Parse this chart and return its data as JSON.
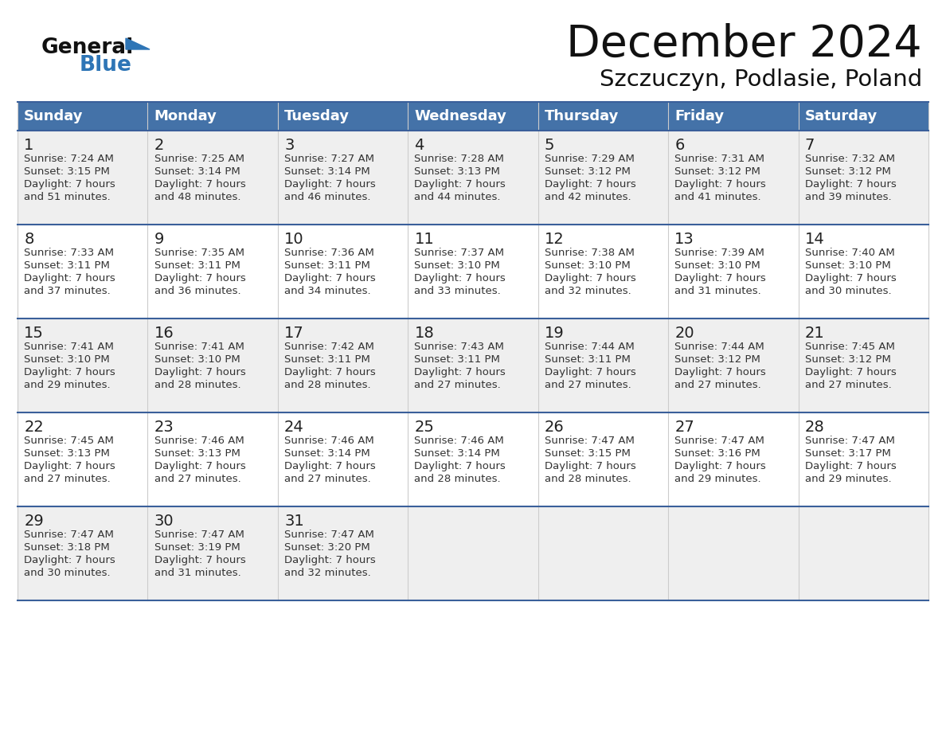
{
  "title": "December 2024",
  "subtitle": "Szczuczyn, Podlasie, Poland",
  "days_of_week": [
    "Sunday",
    "Monday",
    "Tuesday",
    "Wednesday",
    "Thursday",
    "Friday",
    "Saturday"
  ],
  "header_bg": "#4472A8",
  "header_text": "#FFFFFF",
  "cell_bg_light": "#EFEFEF",
  "cell_bg_white": "#FFFFFF",
  "row_separator_color": "#3A5F9A",
  "col_separator_color": "#CCCCCC",
  "day_number_color": "#222222",
  "text_color": "#333333",
  "title_color": "#111111",
  "logo_general_color": "#111111",
  "logo_blue_color": "#2E75B6",
  "logo_triangle_color": "#2E75B6",
  "weeks": [
    [
      {
        "day": "1",
        "sunrise": "7:24 AM",
        "sunset": "3:15 PM",
        "daylight_line1": "Daylight: 7 hours",
        "daylight_line2": "and 51 minutes."
      },
      {
        "day": "2",
        "sunrise": "7:25 AM",
        "sunset": "3:14 PM",
        "daylight_line1": "Daylight: 7 hours",
        "daylight_line2": "and 48 minutes."
      },
      {
        "day": "3",
        "sunrise": "7:27 AM",
        "sunset": "3:14 PM",
        "daylight_line1": "Daylight: 7 hours",
        "daylight_line2": "and 46 minutes."
      },
      {
        "day": "4",
        "sunrise": "7:28 AM",
        "sunset": "3:13 PM",
        "daylight_line1": "Daylight: 7 hours",
        "daylight_line2": "and 44 minutes."
      },
      {
        "day": "5",
        "sunrise": "7:29 AM",
        "sunset": "3:12 PM",
        "daylight_line1": "Daylight: 7 hours",
        "daylight_line2": "and 42 minutes."
      },
      {
        "day": "6",
        "sunrise": "7:31 AM",
        "sunset": "3:12 PM",
        "daylight_line1": "Daylight: 7 hours",
        "daylight_line2": "and 41 minutes."
      },
      {
        "day": "7",
        "sunrise": "7:32 AM",
        "sunset": "3:12 PM",
        "daylight_line1": "Daylight: 7 hours",
        "daylight_line2": "and 39 minutes."
      }
    ],
    [
      {
        "day": "8",
        "sunrise": "7:33 AM",
        "sunset": "3:11 PM",
        "daylight_line1": "Daylight: 7 hours",
        "daylight_line2": "and 37 minutes."
      },
      {
        "day": "9",
        "sunrise": "7:35 AM",
        "sunset": "3:11 PM",
        "daylight_line1": "Daylight: 7 hours",
        "daylight_line2": "and 36 minutes."
      },
      {
        "day": "10",
        "sunrise": "7:36 AM",
        "sunset": "3:11 PM",
        "daylight_line1": "Daylight: 7 hours",
        "daylight_line2": "and 34 minutes."
      },
      {
        "day": "11",
        "sunrise": "7:37 AM",
        "sunset": "3:10 PM",
        "daylight_line1": "Daylight: 7 hours",
        "daylight_line2": "and 33 minutes."
      },
      {
        "day": "12",
        "sunrise": "7:38 AM",
        "sunset": "3:10 PM",
        "daylight_line1": "Daylight: 7 hours",
        "daylight_line2": "and 32 minutes."
      },
      {
        "day": "13",
        "sunrise": "7:39 AM",
        "sunset": "3:10 PM",
        "daylight_line1": "Daylight: 7 hours",
        "daylight_line2": "and 31 minutes."
      },
      {
        "day": "14",
        "sunrise": "7:40 AM",
        "sunset": "3:10 PM",
        "daylight_line1": "Daylight: 7 hours",
        "daylight_line2": "and 30 minutes."
      }
    ],
    [
      {
        "day": "15",
        "sunrise": "7:41 AM",
        "sunset": "3:10 PM",
        "daylight_line1": "Daylight: 7 hours",
        "daylight_line2": "and 29 minutes."
      },
      {
        "day": "16",
        "sunrise": "7:41 AM",
        "sunset": "3:10 PM",
        "daylight_line1": "Daylight: 7 hours",
        "daylight_line2": "and 28 minutes."
      },
      {
        "day": "17",
        "sunrise": "7:42 AM",
        "sunset": "3:11 PM",
        "daylight_line1": "Daylight: 7 hours",
        "daylight_line2": "and 28 minutes."
      },
      {
        "day": "18",
        "sunrise": "7:43 AM",
        "sunset": "3:11 PM",
        "daylight_line1": "Daylight: 7 hours",
        "daylight_line2": "and 27 minutes."
      },
      {
        "day": "19",
        "sunrise": "7:44 AM",
        "sunset": "3:11 PM",
        "daylight_line1": "Daylight: 7 hours",
        "daylight_line2": "and 27 minutes."
      },
      {
        "day": "20",
        "sunrise": "7:44 AM",
        "sunset": "3:12 PM",
        "daylight_line1": "Daylight: 7 hours",
        "daylight_line2": "and 27 minutes."
      },
      {
        "day": "21",
        "sunrise": "7:45 AM",
        "sunset": "3:12 PM",
        "daylight_line1": "Daylight: 7 hours",
        "daylight_line2": "and 27 minutes."
      }
    ],
    [
      {
        "day": "22",
        "sunrise": "7:45 AM",
        "sunset": "3:13 PM",
        "daylight_line1": "Daylight: 7 hours",
        "daylight_line2": "and 27 minutes."
      },
      {
        "day": "23",
        "sunrise": "7:46 AM",
        "sunset": "3:13 PM",
        "daylight_line1": "Daylight: 7 hours",
        "daylight_line2": "and 27 minutes."
      },
      {
        "day": "24",
        "sunrise": "7:46 AM",
        "sunset": "3:14 PM",
        "daylight_line1": "Daylight: 7 hours",
        "daylight_line2": "and 27 minutes."
      },
      {
        "day": "25",
        "sunrise": "7:46 AM",
        "sunset": "3:14 PM",
        "daylight_line1": "Daylight: 7 hours",
        "daylight_line2": "and 28 minutes."
      },
      {
        "day": "26",
        "sunrise": "7:47 AM",
        "sunset": "3:15 PM",
        "daylight_line1": "Daylight: 7 hours",
        "daylight_line2": "and 28 minutes."
      },
      {
        "day": "27",
        "sunrise": "7:47 AM",
        "sunset": "3:16 PM",
        "daylight_line1": "Daylight: 7 hours",
        "daylight_line2": "and 29 minutes."
      },
      {
        "day": "28",
        "sunrise": "7:47 AM",
        "sunset": "3:17 PM",
        "daylight_line1": "Daylight: 7 hours",
        "daylight_line2": "and 29 minutes."
      }
    ],
    [
      {
        "day": "29",
        "sunrise": "7:47 AM",
        "sunset": "3:18 PM",
        "daylight_line1": "Daylight: 7 hours",
        "daylight_line2": "and 30 minutes."
      },
      {
        "day": "30",
        "sunrise": "7:47 AM",
        "sunset": "3:19 PM",
        "daylight_line1": "Daylight: 7 hours",
        "daylight_line2": "and 31 minutes."
      },
      {
        "day": "31",
        "sunrise": "7:47 AM",
        "sunset": "3:20 PM",
        "daylight_line1": "Daylight: 7 hours",
        "daylight_line2": "and 32 minutes."
      },
      null,
      null,
      null,
      null
    ]
  ]
}
